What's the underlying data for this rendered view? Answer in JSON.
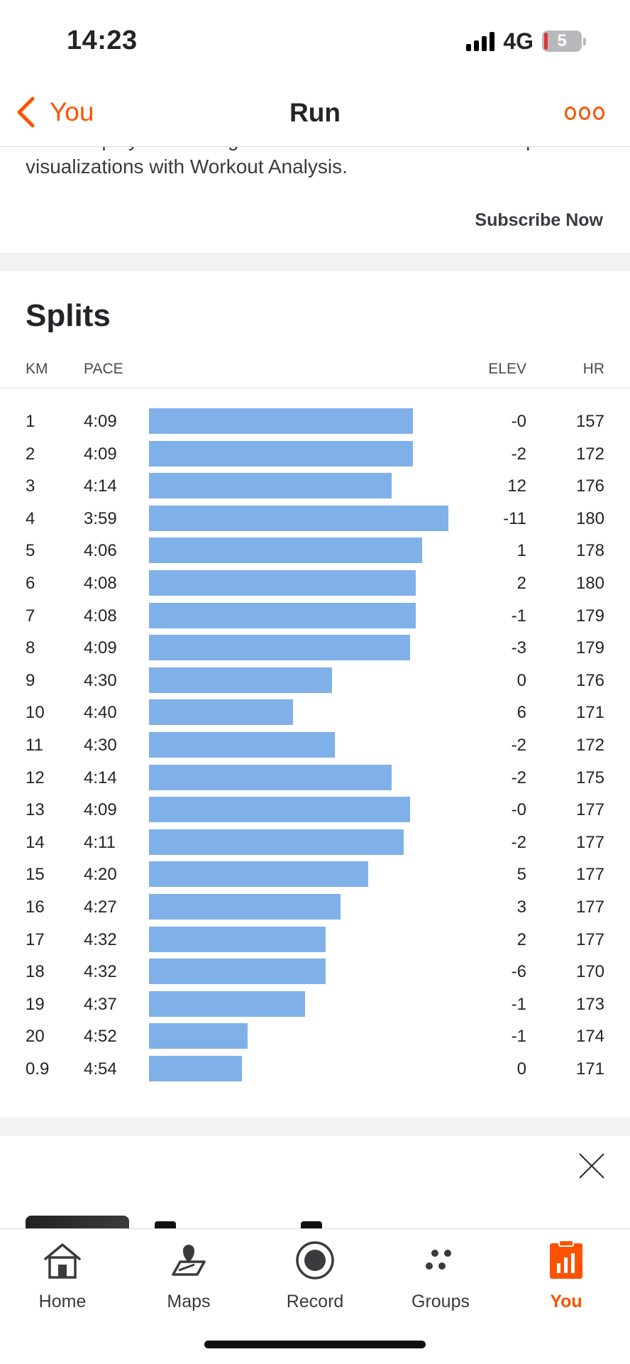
{
  "status_bar": {
    "time": "14:23",
    "network": "4G",
    "battery": "5"
  },
  "nav": {
    "back_label": "You",
    "title": "Run"
  },
  "promo": {
    "text": "All the laps you record get detailed breakdowns and sharp visualizations with Workout Analysis.",
    "subscribe_label": "Subscribe Now"
  },
  "splits": {
    "title": "Splits",
    "headers": {
      "km": "KM",
      "pace": "PACE",
      "elev": "ELEV",
      "hr": "HR"
    },
    "rows": [
      {
        "km": "1",
        "pace": "4:09",
        "elev": "-0",
        "hr": "157",
        "speed_fraction": 0.875
      },
      {
        "km": "2",
        "pace": "4:09",
        "elev": "-2",
        "hr": "172",
        "speed_fraction": 0.875
      },
      {
        "km": "3",
        "pace": "4:14",
        "elev": "12",
        "hr": "176",
        "speed_fraction": 0.805
      },
      {
        "km": "4",
        "pace": "3:59",
        "elev": "-11",
        "hr": "180",
        "speed_fraction": 0.993
      },
      {
        "km": "5",
        "pace": "4:06",
        "elev": "1",
        "hr": "178",
        "speed_fraction": 0.905
      },
      {
        "km": "6",
        "pace": "4:08",
        "elev": "2",
        "hr": "180",
        "speed_fraction": 0.885
      },
      {
        "km": "7",
        "pace": "4:08",
        "elev": "-1",
        "hr": "179",
        "speed_fraction": 0.885
      },
      {
        "km": "8",
        "pace": "4:09",
        "elev": "-3",
        "hr": "179",
        "speed_fraction": 0.865
      },
      {
        "km": "9",
        "pace": "4:30",
        "elev": "0",
        "hr": "176",
        "speed_fraction": 0.607
      },
      {
        "km": "10",
        "pace": "4:40",
        "elev": "6",
        "hr": "171",
        "speed_fraction": 0.478
      },
      {
        "km": "11",
        "pace": "4:30",
        "elev": "-2",
        "hr": "172",
        "speed_fraction": 0.616
      },
      {
        "km": "12",
        "pace": "4:14",
        "elev": "-2",
        "hr": "175",
        "speed_fraction": 0.805
      },
      {
        "km": "13",
        "pace": "4:09",
        "elev": "-0",
        "hr": "177",
        "speed_fraction": 0.865
      },
      {
        "km": "14",
        "pace": "4:11",
        "elev": "-2",
        "hr": "177",
        "speed_fraction": 0.845
      },
      {
        "km": "15",
        "pace": "4:20",
        "elev": "5",
        "hr": "177",
        "speed_fraction": 0.726
      },
      {
        "km": "16",
        "pace": "4:27",
        "elev": "3",
        "hr": "177",
        "speed_fraction": 0.636
      },
      {
        "km": "17",
        "pace": "4:32",
        "elev": "2",
        "hr": "177",
        "speed_fraction": 0.587
      },
      {
        "km": "18",
        "pace": "4:32",
        "elev": "-6",
        "hr": "170",
        "speed_fraction": 0.587
      },
      {
        "km": "19",
        "pace": "4:37",
        "elev": "-1",
        "hr": "173",
        "speed_fraction": 0.517
      },
      {
        "km": "20",
        "pace": "4:52",
        "elev": "-1",
        "hr": "174",
        "speed_fraction": 0.327
      },
      {
        "km": "0.9",
        "pace": "4:54",
        "elev": "0",
        "hr": "171",
        "speed_fraction": 0.308
      }
    ]
  },
  "tab_bar": {
    "items": [
      {
        "label": "Home",
        "icon": "home-icon"
      },
      {
        "label": "Maps",
        "icon": "map-pin-icon"
      },
      {
        "label": "Record",
        "icon": "record-icon"
      },
      {
        "label": "Groups",
        "icon": "groups-icon"
      },
      {
        "label": "You",
        "icon": "clipboard-chart-icon"
      }
    ],
    "active": "You"
  },
  "colors": {
    "accent": "#fc5200",
    "pace_bar": "#80b0e8",
    "text": "#242428"
  }
}
